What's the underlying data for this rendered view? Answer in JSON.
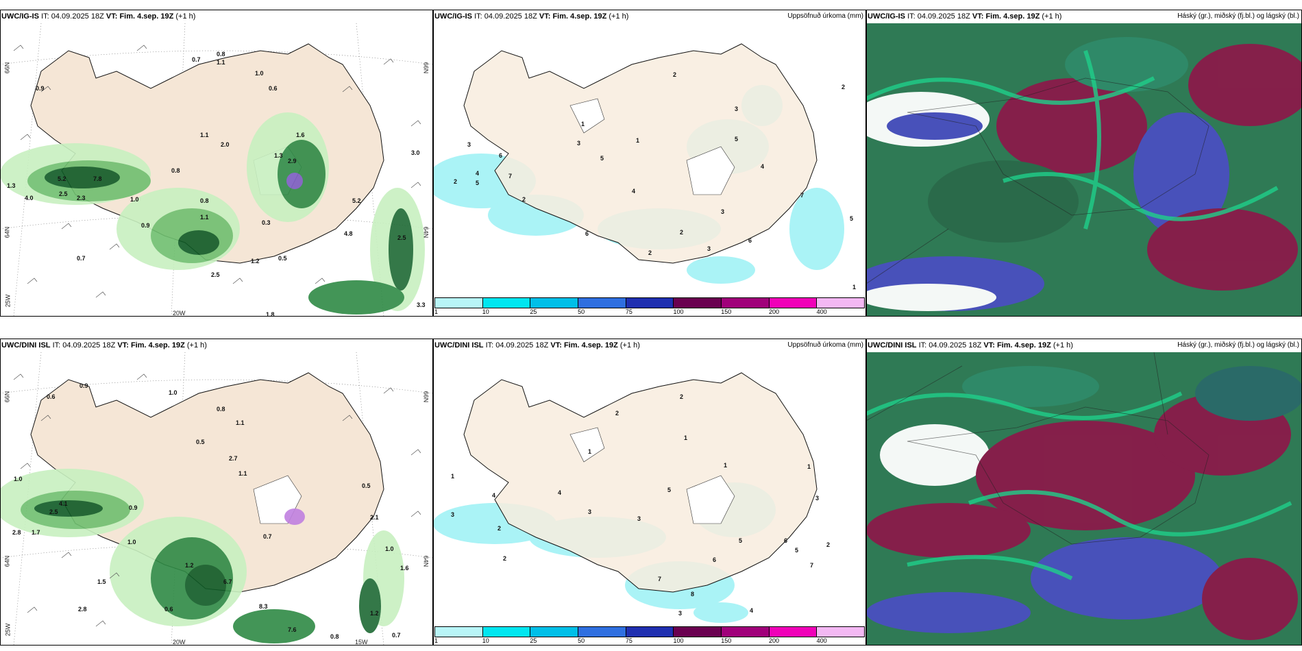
{
  "rows": [
    {
      "model": "UWC/IG-IS",
      "it_label": "IT:",
      "it_value": "04.09.2025 18Z",
      "vt_label": "VT:",
      "vt_value": "Fim. 4.sep. 19Z",
      "lead": "(+1 h)",
      "precip_title": "Uppsöfnuð úrkoma (mm)",
      "cloud_title": "Háský (gr.), miðský (fj.bl.) og lágský (bl.)",
      "axis_left": [
        "66N",
        "64N",
        "25W"
      ],
      "axis_right": [
        "66N",
        "64N"
      ],
      "axis_bottom": [
        "20W"
      ],
      "precip_values": [
        "0.9",
        "0.7",
        "0.8",
        "1.1",
        "1.0",
        "0.6",
        "1.1",
        "2.0",
        "0.8",
        "1.6",
        "2.9",
        "7.8",
        "5.2",
        "4.0",
        "2.3",
        "1.3",
        "2.5",
        "1.0",
        "0.9",
        "1.1",
        "0.5",
        "0.7",
        "1.8",
        "2.5",
        "1.2",
        "0.3",
        "0.8",
        "1.3",
        "3.3",
        "4.8",
        "5.2",
        "2.5",
        "3.0"
      ],
      "map_numbers": [
        "2",
        "3",
        "1",
        "2",
        "3",
        "5",
        "6",
        "7",
        "4",
        "5",
        "2",
        "3",
        "4",
        "5",
        "6",
        "1",
        "2",
        "3",
        "4",
        "2",
        "7",
        "5",
        "6",
        "2",
        "3",
        "1"
      ]
    },
    {
      "model": "UWC/DINI ISL",
      "it_label": "IT:",
      "it_value": "04.09.2025 18Z",
      "vt_label": "VT:",
      "vt_value": "Fim. 4.sep. 19Z",
      "lead": "(+1 h)",
      "precip_title": "Uppsöfnuð úrkoma (mm)",
      "cloud_title": "Háský (gr.), miðský (fj.bl.) og lágský (bl.)",
      "axis_left": [
        "66N",
        "64N",
        "25W"
      ],
      "axis_right": [
        "66N",
        "64N"
      ],
      "axis_bottom": [
        "20W",
        "15W"
      ],
      "precip_values": [
        "0.9",
        "1.0",
        "0.6",
        "0.8",
        "1.1",
        "0.5",
        "2.7",
        "1.1",
        "1.0",
        "4.1",
        "2.5",
        "2.8",
        "1.7",
        "0.9",
        "1.0",
        "1.2",
        "0.7",
        "0.6",
        "1.5",
        "2.8",
        "6.7",
        "8.3",
        "7.6",
        "0.8",
        "0.7",
        "1.6",
        "1.2",
        "1.0",
        "0.5",
        "2.1"
      ],
      "map_numbers": [
        "1",
        "2",
        "1",
        "1",
        "2",
        "3",
        "4",
        "3",
        "2",
        "5",
        "4",
        "3",
        "1",
        "6",
        "7",
        "5",
        "8",
        "2",
        "3",
        "1",
        "6",
        "5",
        "7",
        "3",
        "2",
        "4"
      ]
    }
  ],
  "legend": {
    "ticks": [
      "1",
      "10",
      "25",
      "50",
      "75",
      "100",
      "150",
      "200",
      "400"
    ],
    "colors": [
      "#b8f5f7",
      "#00e6f0",
      "#00bfe8",
      "#2f6fe0",
      "#1f2fb0",
      "#6a0050",
      "#a0007a",
      "#f000b8",
      "#f3b8f3"
    ]
  },
  "colors": {
    "land": "#f8ecde",
    "sea": "#ffffff",
    "precip_light": "#c8f0c0",
    "precip_mid": "#6fbf6f",
    "precip_dark": "#0f5a25",
    "precip_cyan": "#aaf3f6",
    "cloud_high": "#2f7a55",
    "cloud_mid": "#8a1b4a",
    "cloud_low": "#4a4fc0",
    "cloud_green": "#1fd08a"
  }
}
